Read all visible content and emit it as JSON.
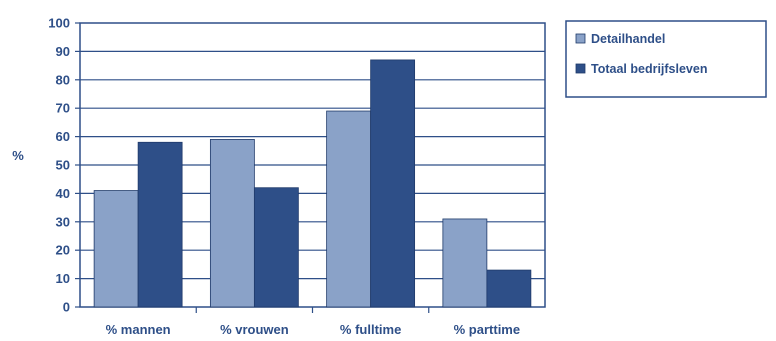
{
  "chart_data": {
    "type": "bar",
    "ylabel": "%",
    "ylim": [
      0,
      100
    ],
    "yticks": [
      "0",
      "10",
      "20",
      "30",
      "40",
      "50",
      "60",
      "70",
      "80",
      "90",
      "100"
    ],
    "grid": true,
    "legend_position": "top-right",
    "categories": [
      "% mannen",
      "% vrouwen",
      "% fulltime",
      "% parttime"
    ],
    "series": [
      {
        "name": "Detailhandel",
        "values": [
          41,
          59,
          69,
          31
        ],
        "color": "#8aa2c8"
      },
      {
        "name": "Totaal bedrijfsleven",
        "values": [
          58,
          42,
          87,
          13
        ],
        "color": "#2e4f88"
      }
    ]
  }
}
